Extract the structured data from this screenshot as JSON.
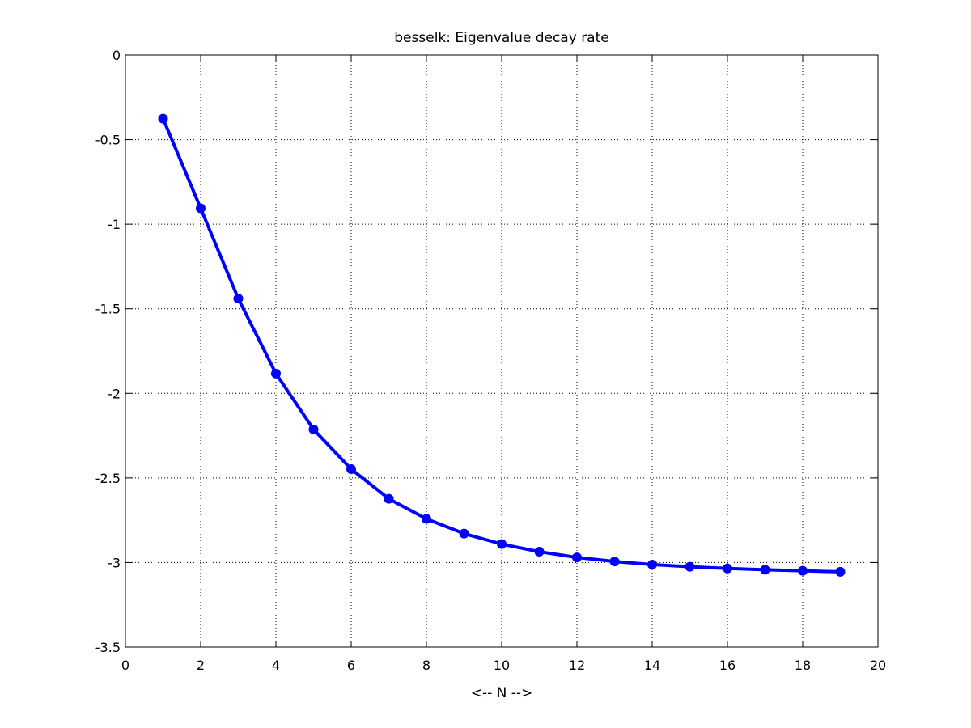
{
  "chart_data": {
    "type": "line",
    "title": "besselk: Eigenvalue decay rate",
    "xlabel": "<-- N -->",
    "ylabel": "",
    "xlim": [
      0,
      20
    ],
    "ylim": [
      -3.5,
      0
    ],
    "xticks": [
      0,
      2,
      4,
      6,
      8,
      10,
      12,
      14,
      16,
      18,
      20
    ],
    "yticks": [
      0,
      -0.5,
      -1,
      -1.5,
      -2,
      -2.5,
      -3,
      -3.5
    ],
    "xtick_labels": [
      "0",
      "2",
      "4",
      "6",
      "8",
      "10",
      "12",
      "14",
      "16",
      "18",
      "20"
    ],
    "ytick_labels": [
      "0",
      "-0.5",
      "-1",
      "-1.5",
      "-2",
      "-2.5",
      "-3",
      "-3.5"
    ],
    "grid": true,
    "colors": {
      "series": "#0000ff",
      "axes": "#000000",
      "grid": "#000000"
    },
    "series": [
      {
        "x": [
          1,
          2,
          3,
          4,
          5,
          6,
          7,
          8,
          9,
          10,
          11,
          12,
          13,
          14,
          15,
          16,
          17,
          18,
          19
        ],
        "values": [
          -0.376,
          -0.906,
          -1.44,
          -1.883,
          -2.213,
          -2.448,
          -2.623,
          -2.742,
          -2.829,
          -2.891,
          -2.936,
          -2.97,
          -2.994,
          -3.012,
          -3.025,
          -3.035,
          -3.043,
          -3.049,
          -3.055
        ]
      }
    ]
  }
}
